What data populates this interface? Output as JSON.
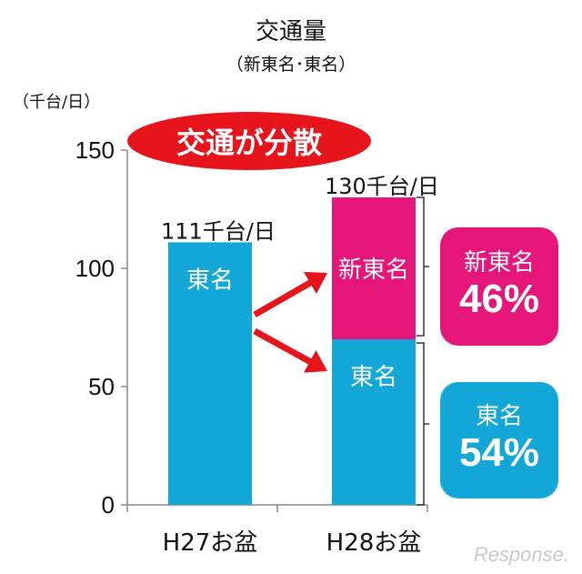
{
  "header": {
    "title": "交通量",
    "subtitle": "（新東名･東名）",
    "unit": "（千台/日）"
  },
  "callout": "交通が分散",
  "share_boxes": [
    {
      "name": "新東名",
      "percent": "46%",
      "color": "#e5157a"
    },
    {
      "name": "東名",
      "percent": "54%",
      "color": "#12a7d6"
    }
  ],
  "watermark": "Response.",
  "colors": {
    "tomei": "#12a7d6",
    "shintomei": "#e5157a",
    "arrow": "#e8141c",
    "callout": "#e8141c"
  },
  "chart_data": {
    "type": "bar",
    "stacked": true,
    "categories": [
      "H27お盆",
      "H28お盆"
    ],
    "series": [
      {
        "name": "東名",
        "values": [
          111,
          70
        ]
      },
      {
        "name": "新東名",
        "values": [
          0,
          60
        ]
      }
    ],
    "totals": [
      111,
      130
    ],
    "total_labels": [
      "111千台/日",
      "130千台/日"
    ],
    "segment_labels": [
      [
        "東名",
        ""
      ],
      [
        "東名",
        "新東名"
      ]
    ],
    "yticks": [
      "0",
      "50",
      "100",
      "150"
    ],
    "ylim": [
      0,
      150
    ],
    "grid": false,
    "legend": "none"
  }
}
